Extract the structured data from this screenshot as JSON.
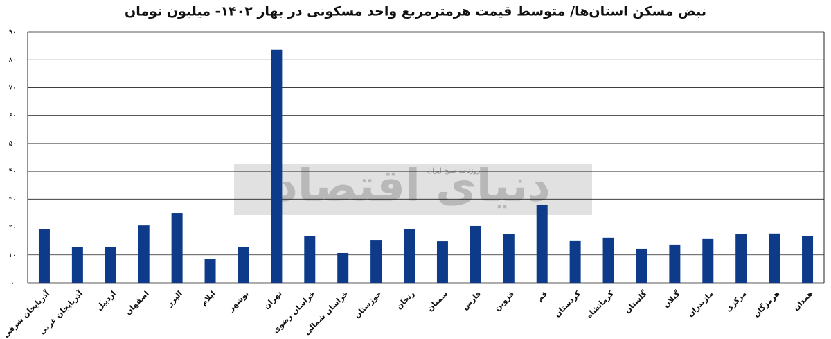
{
  "chart_data": {
    "type": "bar",
    "title": "نبض مسکن استان‌ها/ متوسط قیمت هرمترمربع واحد مسکونی در بهار ۱۴۰۲- میلیون تومان",
    "watermark": [
      "دنیای اقتصاد",
      "روزنامه صبح ایران"
    ],
    "categories": [
      "آذربایجان شرقی",
      "آذربایجان غربی",
      "اردبیل",
      "اصفهان",
      "البرز",
      "ایلام",
      "بوشهر",
      "تهران",
      "خراسان رضوی",
      "خراسان شمالی",
      "خوزستان",
      "زنجان",
      "سمنان",
      "فارس",
      "قزوین",
      "قم",
      "کردستان",
      "کرمانشاه",
      "گلستان",
      "گیلان",
      "مازندران",
      "مرکزی",
      "هرمزگان",
      "همدان"
    ],
    "values": [
      19.2,
      12.7,
      12.7,
      20.6,
      25.1,
      8.5,
      12.9,
      83.6,
      16.7,
      10.7,
      15.4,
      19.2,
      14.9,
      20.4,
      17.4,
      28.1,
      15.2,
      16.2,
      12.2,
      13.7,
      15.7,
      17.4,
      17.7,
      16.9
    ],
    "color": "#0d3b8a",
    "ylim": [
      0,
      90
    ],
    "yticks": [
      {
        "value": 0,
        "label": "۰"
      },
      {
        "value": 10,
        "label": "۱۰"
      },
      {
        "value": 20,
        "label": "۲۰"
      },
      {
        "value": 30,
        "label": "۳۰"
      },
      {
        "value": 40,
        "label": "۴۰"
      },
      {
        "value": 50,
        "label": "۵۰"
      },
      {
        "value": 60,
        "label": "۶۰"
      },
      {
        "value": 70,
        "label": "۷۰"
      },
      {
        "value": 80,
        "label": "۸۰"
      },
      {
        "value": 90,
        "label": "۹۰"
      }
    ],
    "grid": true
  }
}
